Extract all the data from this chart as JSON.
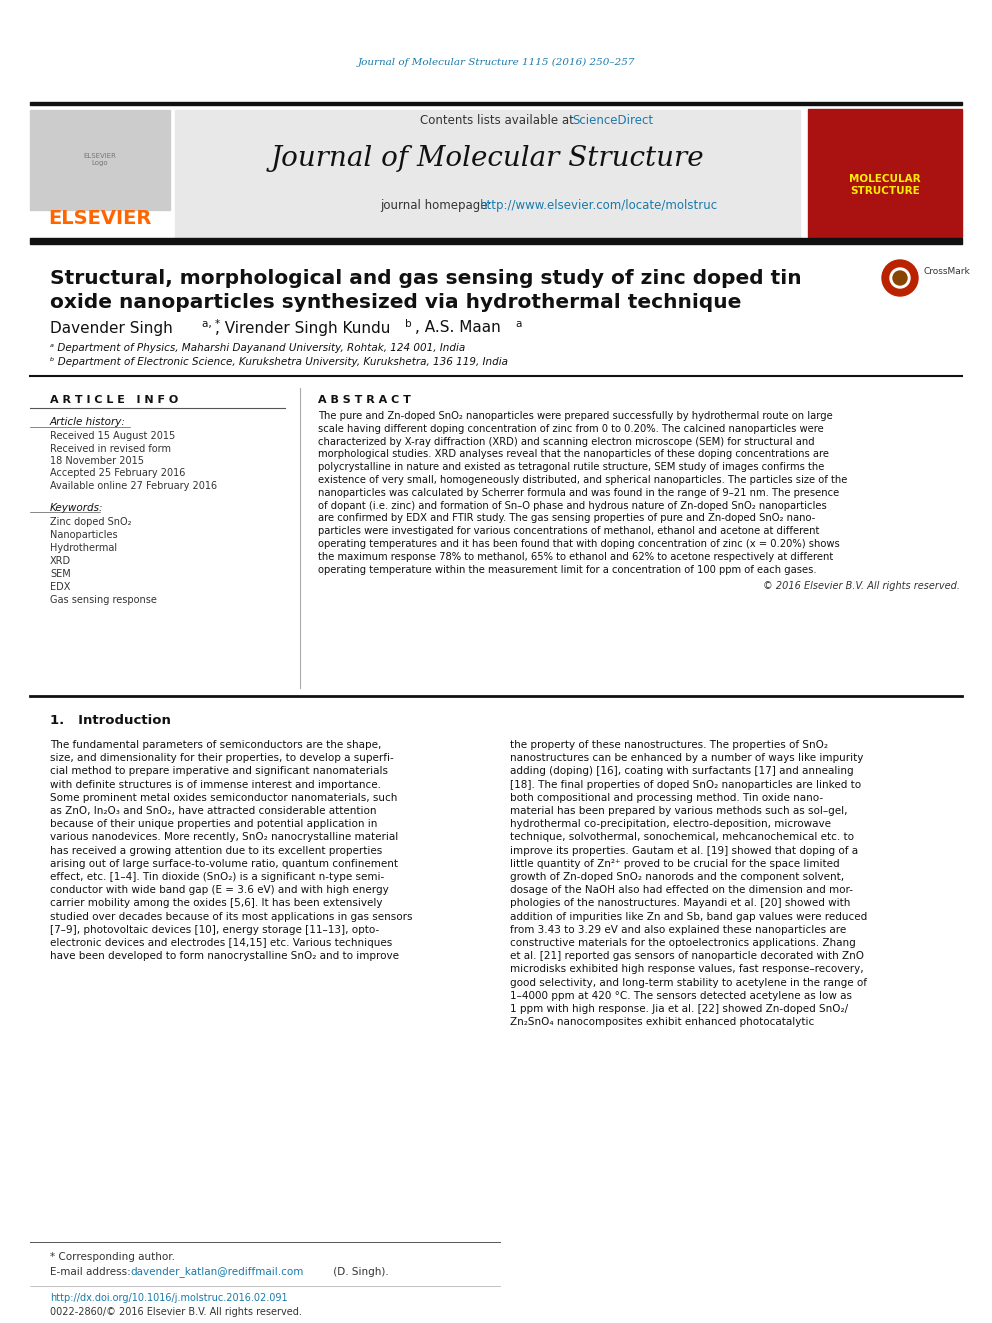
{
  "journal_ref": "Journal of Molecular Structure 1115 (2016) 250–257",
  "journal_ref_color": "#1a7aab",
  "header_bg": "#e8e8e8",
  "header_text": "Contents lists available at",
  "sciencedirect_text": "ScienceDirect",
  "sciencedirect_color": "#1a7aab",
  "journal_title": "Journal of Molecular Structure",
  "journal_homepage_label": "journal homepage:",
  "journal_url": "http://www.elsevier.com/locate/molstruc",
  "journal_url_color": "#1a7aab",
  "elsevier_color": "#ff6600",
  "dark_bar_color": "#1a1a1a",
  "article_title_line1": "Structural, morphological and gas sensing study of zinc doped tin",
  "article_title_line2": "oxide nanoparticles synthesized via hydrothermal technique",
  "affil_a": "ᵃ Department of Physics, Maharshi Dayanand University, Rohtak, 124 001, India",
  "affil_b": "ᵇ Department of Electronic Science, Kurukshetra University, Kurukshetra, 136 119, India",
  "article_info_title": "A R T I C L E   I N F O",
  "abstract_title": "A B S T R A C T",
  "article_history_title": "Article history:",
  "received1": "Received 15 August 2015",
  "received2": "Received in revised form",
  "date2": "18 November 2015",
  "accepted": "Accepted 25 February 2016",
  "available": "Available online 27 February 2016",
  "keywords_title": "Keywords:",
  "keywords": [
    "Zinc doped SnO₂",
    "Nanoparticles",
    "Hydrothermal",
    "XRD",
    "SEM",
    "EDX",
    "Gas sensing response"
  ],
  "copyright": "© 2016 Elsevier B.V. All rights reserved.",
  "intro_title": "1.   Introduction",
  "footer_note": "* Corresponding author.",
  "footer_email_label": "E-mail address:",
  "footer_email": "davender_katlan@rediffmail.com",
  "footer_email_suffix": " (D. Singh).",
  "footer_doi": "http://dx.doi.org/10.1016/j.molstruc.2016.02.091",
  "footer_issn": "0022-2860/© 2016 Elsevier B.V. All rights reserved.",
  "bg_color": "#ffffff",
  "text_color": "#000000",
  "thin_line_color": "#555555",
  "thick_line_color": "#111111"
}
